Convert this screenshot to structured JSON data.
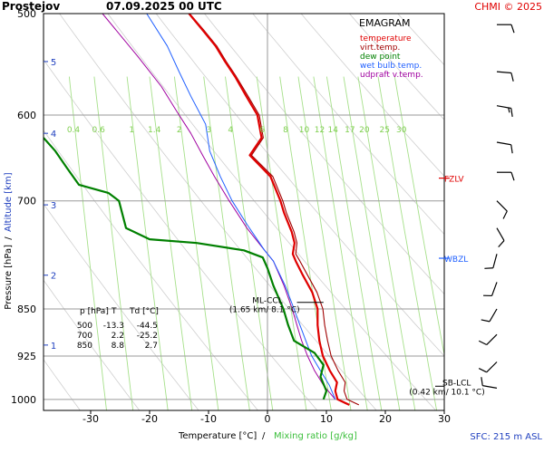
{
  "header": {
    "station": "Prostejov",
    "datetime": "07.09.2025 00 UTC",
    "credit": "CHMI © 2025",
    "sfc": "SFC: 215 m ASL"
  },
  "legend": {
    "title": "EMAGRAM",
    "items": [
      {
        "label": "temperature",
        "color": "#e00000"
      },
      {
        "label": "virt.temp.",
        "color": "#a00000"
      },
      {
        "label": "dew point",
        "color": "#008000"
      },
      {
        "label": "wet bulb temp.",
        "color": "#1f5fff"
      },
      {
        "label": "udpraft v.temp.",
        "color": "#a000a0"
      }
    ]
  },
  "axes": {
    "ylabel_a": "Pressure [hPa]",
    "ylabel_sep": "/",
    "ylabel_b": "Altitude [km]",
    "xlabel_a": "Temperature [°C]",
    "xlabel_sep": "/",
    "xlabel_b": "Mixing ratio [g/kg]"
  },
  "levels": [
    {
      "label": "FZLV",
      "p": 672,
      "color": "#e00000"
    },
    {
      "label": "WBZL",
      "p": 776,
      "color": "#1f5fff"
    },
    {
      "label": "ML-CCL",
      "p": 840,
      "info": "(1.65 km/ 8.1 °C)"
    },
    {
      "label": "SB-LCL",
      "p": 975,
      "info": "(0.42 km/ 10.1 °C)"
    }
  ],
  "table": {
    "headers": [
      "p [hPa]",
      "T",
      "Td [°C]"
    ],
    "rows": [
      [
        "500",
        "-13.3",
        "-44.5"
      ],
      [
        "700",
        "2.2",
        "-25.2"
      ],
      [
        "850",
        "8.8",
        "2.7"
      ]
    ]
  },
  "chart_data": {
    "type": "line",
    "title": "EMAGRAM",
    "xlabel": "Temperature [°C]",
    "ylabel": "Pressure [hPa]",
    "xlim": [
      -38,
      30
    ],
    "ylim": [
      1020,
      500
    ],
    "y_scale": "log",
    "x_ticks": [
      -30,
      -20,
      -10,
      0,
      10,
      20,
      30
    ],
    "p_ticks": [
      500,
      600,
      700,
      850,
      925,
      1000
    ],
    "altitude_ticks": [
      {
        "km": 1,
        "p": 907
      },
      {
        "km": 2,
        "p": 800
      },
      {
        "km": 3,
        "p": 705
      },
      {
        "km": 4,
        "p": 620
      },
      {
        "km": 5,
        "p": 545
      }
    ],
    "mixing_ratio_labels": [
      "0.4",
      "0.6",
      "1",
      "1.4",
      "2",
      "3",
      "4",
      "6",
      "8",
      "10",
      "12",
      "14",
      "17",
      "20",
      "25",
      "30"
    ],
    "series": [
      {
        "name": "temperature",
        "color": "#e00000",
        "points": [
          [
            13.9,
            1010
          ],
          [
            11.9,
            1000
          ],
          [
            11.5,
            985
          ],
          [
            11.8,
            970
          ],
          [
            10.6,
            950
          ],
          [
            9.4,
            925
          ],
          [
            8.8,
            900
          ],
          [
            8.5,
            875
          ],
          [
            8.5,
            850
          ],
          [
            7.6,
            825
          ],
          [
            6.0,
            800
          ],
          [
            4.8,
            780
          ],
          [
            4.3,
            770
          ],
          [
            4.6,
            755
          ],
          [
            4.1,
            740
          ],
          [
            2.8,
            715
          ],
          [
            2.2,
            700
          ],
          [
            0.5,
            670
          ],
          [
            -3.0,
            645
          ],
          [
            -1.0,
            625
          ],
          [
            -1.7,
            600
          ],
          [
            -3.6,
            580
          ],
          [
            -5.5,
            560
          ],
          [
            -7.2,
            545
          ],
          [
            -8.8,
            530
          ],
          [
            -11.0,
            515
          ],
          [
            -13.3,
            500
          ]
        ]
      },
      {
        "name": "virt.temp.",
        "color": "#a00000",
        "points": [
          [
            15.5,
            1010
          ],
          [
            13.5,
            1000
          ],
          [
            13.0,
            985
          ],
          [
            13.2,
            970
          ],
          [
            12.0,
            950
          ],
          [
            10.8,
            925
          ],
          [
            10.2,
            900
          ],
          [
            9.7,
            875
          ],
          [
            9.4,
            850
          ],
          [
            8.4,
            825
          ],
          [
            6.8,
            800
          ],
          [
            5.5,
            780
          ],
          [
            4.8,
            770
          ],
          [
            5.0,
            755
          ],
          [
            4.5,
            740
          ],
          [
            3.2,
            715
          ],
          [
            2.6,
            700
          ],
          [
            0.9,
            670
          ],
          [
            -2.7,
            645
          ],
          [
            -0.7,
            625
          ],
          [
            -1.4,
            600
          ],
          [
            -3.3,
            580
          ],
          [
            -5.3,
            560
          ],
          [
            -7.0,
            545
          ],
          [
            -8.6,
            530
          ],
          [
            -10.8,
            515
          ],
          [
            -13.2,
            500
          ]
        ]
      },
      {
        "name": "dew point",
        "color": "#008000",
        "points": [
          [
            9.5,
            1000
          ],
          [
            10.0,
            985
          ],
          [
            9.0,
            960
          ],
          [
            9.5,
            940
          ],
          [
            8.0,
            920
          ],
          [
            4.5,
            900
          ],
          [
            3.5,
            875
          ],
          [
            2.7,
            850
          ],
          [
            1.0,
            815
          ],
          [
            0.0,
            790
          ],
          [
            -0.8,
            775
          ],
          [
            -4.0,
            765
          ],
          [
            -12.0,
            755
          ],
          [
            -20.0,
            750
          ],
          [
            -24.0,
            735
          ],
          [
            -25.2,
            700
          ],
          [
            -27.0,
            690
          ],
          [
            -32.0,
            680
          ],
          [
            -34.0,
            660
          ],
          [
            -36.0,
            640
          ],
          [
            -38.0,
            625
          ]
        ]
      },
      {
        "name": "wet bulb temp.",
        "color": "#1f5fff",
        "points": [
          [
            11.5,
            1000
          ],
          [
            10.5,
            975
          ],
          [
            9.0,
            950
          ],
          [
            7.5,
            925
          ],
          [
            6.5,
            900
          ],
          [
            5.5,
            875
          ],
          [
            4.5,
            850
          ],
          [
            3.0,
            815
          ],
          [
            1.0,
            780
          ],
          [
            -0.5,
            765
          ],
          [
            -3.5,
            730
          ],
          [
            -6.0,
            700
          ],
          [
            -8.0,
            670
          ],
          [
            -9.8,
            640
          ],
          [
            -10.5,
            610
          ],
          [
            -13.0,
            580
          ],
          [
            -15.0,
            555
          ],
          [
            -17.0,
            530
          ],
          [
            -20.5,
            500
          ]
        ]
      },
      {
        "name": "udpraft v.temp.",
        "color": "#a000a0",
        "points": [
          [
            11.5,
            1000
          ],
          [
            9.5,
            975
          ],
          [
            8.0,
            950
          ],
          [
            6.8,
            925
          ],
          [
            5.8,
            900
          ],
          [
            5.0,
            875
          ],
          [
            4.2,
            850
          ],
          [
            2.8,
            815
          ],
          [
            1.0,
            780
          ],
          [
            -1.0,
            760
          ],
          [
            -3.5,
            735
          ],
          [
            -6.5,
            700
          ],
          [
            -9.0,
            670
          ],
          [
            -11.0,
            645
          ],
          [
            -13.0,
            620
          ],
          [
            -15.5,
            595
          ],
          [
            -18.0,
            570
          ],
          [
            -22.0,
            540
          ],
          [
            -28.0,
            500
          ]
        ]
      }
    ],
    "wind_barbs": [
      {
        "p": 510,
        "dir": 270,
        "speed": 10
      },
      {
        "p": 555,
        "dir": 275,
        "speed": 10
      },
      {
        "p": 590,
        "dir": 280,
        "speed": 15
      },
      {
        "p": 630,
        "dir": 280,
        "speed": 10
      },
      {
        "p": 665,
        "dir": 270,
        "speed": 10
      },
      {
        "p": 700,
        "dir": 315,
        "speed": 10
      },
      {
        "p": 735,
        "dir": 330,
        "speed": 10
      },
      {
        "p": 770,
        "dir": 15,
        "speed": 10
      },
      {
        "p": 810,
        "dir": 20,
        "speed": 10
      },
      {
        "p": 850,
        "dir": 30,
        "speed": 10
      },
      {
        "p": 890,
        "dir": 45,
        "speed": 10
      },
      {
        "p": 935,
        "dir": 45,
        "speed": 10
      },
      {
        "p": 980,
        "dir": 100,
        "speed": 10
      }
    ]
  }
}
